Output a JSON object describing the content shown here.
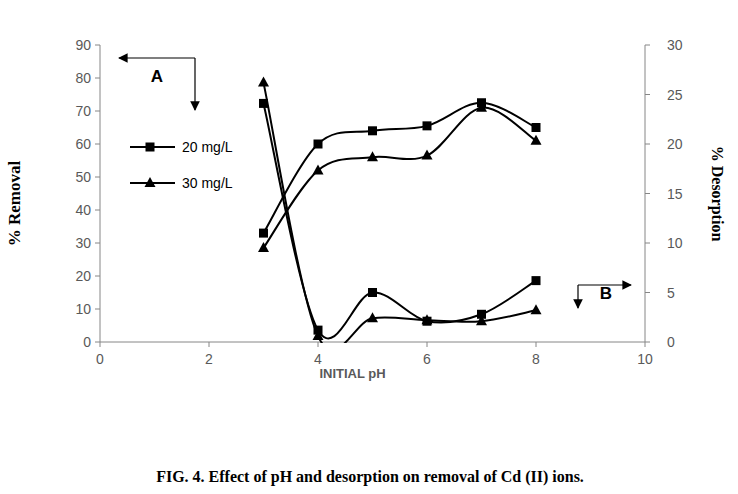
{
  "chart_data": {
    "type": "line",
    "title": "FIG. 4. Effect of pH and desorption on removal of Cd (II) ions.",
    "x_label": "INITIAL pH",
    "y_label": "% Removal",
    "y2_label": "% Desorption",
    "annotations": [
      "A",
      "B"
    ],
    "x": [
      3,
      4,
      5,
      6,
      7,
      8
    ],
    "xlim": [
      0,
      10
    ],
    "xticks": [
      0,
      2,
      4,
      6,
      8,
      10
    ],
    "ylim": [
      0,
      90
    ],
    "yticks": [
      0,
      10,
      20,
      30,
      40,
      50,
      60,
      70,
      80,
      90
    ],
    "y2lim": [
      0,
      30
    ],
    "y2ticks": [
      0,
      5,
      10,
      15,
      20,
      25,
      30
    ],
    "grid": false,
    "legend": "left",
    "series": [
      {
        "name": "20 mg/L",
        "color": "#000000",
        "marker": "square",
        "line_style": "smooth",
        "values": [
          33,
          60,
          64,
          65.5,
          72.5,
          65
        ]
      },
      {
        "name": "30 mg/L",
        "color": "#000000",
        "marker": "triangle",
        "line_style": "smooth",
        "values": [
          28.5,
          52,
          56,
          56.5,
          71,
          61
        ]
      },
      {
        "name": "20 mg/L",
        "color": "#000000",
        "marker": "square",
        "line_style": "smooth",
        "axis": "y2",
        "values": [
          24.1,
          1.2,
          5.0,
          2.1,
          2.8,
          6.2
        ]
      },
      {
        "name": "30 mg/L",
        "color": "#000000",
        "marker": "triangle",
        "line_style": "smooth",
        "axis": "y2",
        "values": [
          26.2,
          0.6,
          2.4,
          2.2,
          2.1,
          3.2
        ]
      }
    ]
  }
}
